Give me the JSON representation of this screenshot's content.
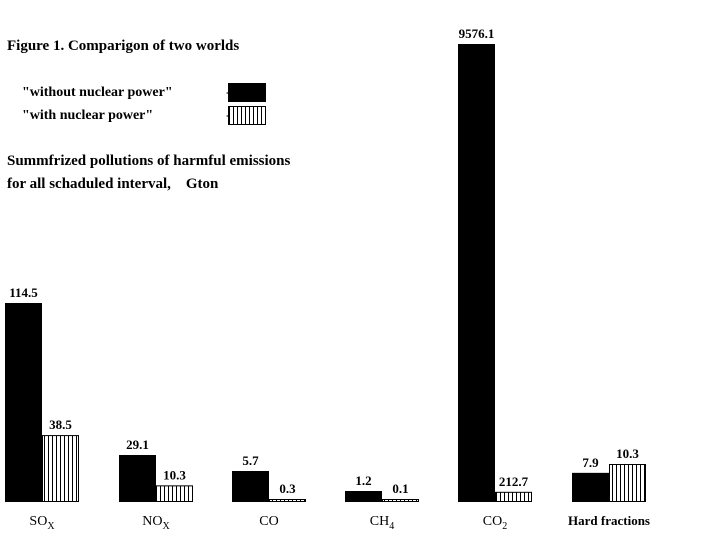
{
  "chart_data": {
    "type": "bar",
    "title": "Figure 1. Comparigon of two worlds",
    "subtitle_lines": [
      "Summfrized pollutions of harmful emissions",
      "for all schaduled interval,    Gton"
    ],
    "legend": [
      {
        "label": "\"without nuclear power\"",
        "pattern": "solid",
        "dash": "-"
      },
      {
        "label": "\"with nuclear power\"",
        "pattern": "vertical-hatch",
        "dash": "-"
      }
    ],
    "categories": [
      {
        "base": "SO",
        "sub": "X"
      },
      {
        "base": "NO",
        "sub": "X"
      },
      {
        "base": "CO",
        "sub": ""
      },
      {
        "base": "CH",
        "sub": "4"
      },
      {
        "base": "CO",
        "sub": "2"
      },
      {
        "base": "Hard fractions",
        "sub": ""
      }
    ],
    "series": [
      {
        "name": "\"without nuclear power\"",
        "values": [
          114.5,
          29.1,
          5.7,
          1.2,
          9576.1,
          7.9
        ],
        "labels": [
          "114.5",
          "29.1",
          "5.7",
          "1.2",
          "9576.1",
          "7.9"
        ]
      },
      {
        "name": "\"with nuclear power\"",
        "values": [
          38.5,
          10.3,
          0.3,
          0.1,
          212.7,
          10.3
        ],
        "labels": [
          "38.5",
          "10.3",
          "0.3",
          "0.1",
          "212.7",
          "10.3"
        ]
      }
    ],
    "grid": false,
    "legend_placement": "top-left",
    "colors": {
      "bar_fill": "#000000",
      "hatch": "#000000",
      "background": "#ffffff"
    }
  }
}
